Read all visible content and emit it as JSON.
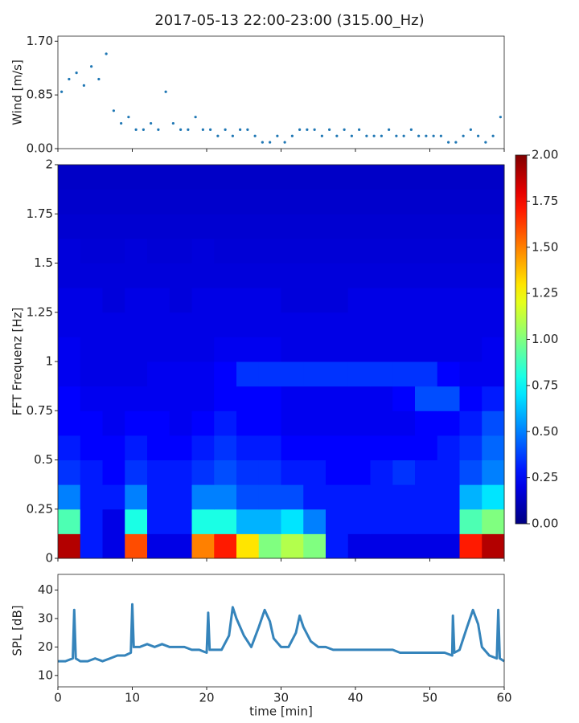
{
  "title": "2017-05-13 22:00-23:00 (315.00_Hz)",
  "chart_data": [
    {
      "type": "scatter",
      "y_label": "Wind [m/s]",
      "color": "#1f77b4",
      "x": [
        0.5,
        1.5,
        2.5,
        3.5,
        4.5,
        5.5,
        6.5,
        7.5,
        8.5,
        9.5,
        10.5,
        11.5,
        12.5,
        13.5,
        14.5,
        15.5,
        16.5,
        17.5,
        18.5,
        19.5,
        20.5,
        21.5,
        22.5,
        23.5,
        24.5,
        25.5,
        26.5,
        27.5,
        28.5,
        29.5,
        30.5,
        31.5,
        32.5,
        33.5,
        34.5,
        35.5,
        36.5,
        37.5,
        38.5,
        39.5,
        40.5,
        41.5,
        42.5,
        43.5,
        44.5,
        45.5,
        46.5,
        47.5,
        48.5,
        49.5,
        50.5,
        51.5,
        52.5,
        53.5,
        54.5,
        55.5,
        56.5,
        57.5,
        58.5,
        59.5
      ],
      "values": [
        0.9,
        1.1,
        1.2,
        1.0,
        1.3,
        1.1,
        1.5,
        0.6,
        0.4,
        0.5,
        0.3,
        0.3,
        0.4,
        0.3,
        0.9,
        0.4,
        0.3,
        0.3,
        0.5,
        0.3,
        0.3,
        0.2,
        0.3,
        0.2,
        0.3,
        0.3,
        0.2,
        0.1,
        0.1,
        0.2,
        0.1,
        0.2,
        0.3,
        0.3,
        0.3,
        0.2,
        0.3,
        0.2,
        0.3,
        0.2,
        0.3,
        0.2,
        0.2,
        0.2,
        0.3,
        0.2,
        0.2,
        0.3,
        0.2,
        0.2,
        0.2,
        0.2,
        0.1,
        0.1,
        0.2,
        0.3,
        0.2,
        0.1,
        0.2,
        0.5
      ],
      "xlim": [
        0,
        60
      ],
      "xticks": [
        0,
        10,
        20,
        30,
        40,
        50,
        60
      ],
      "ylim": [
        0,
        1.78
      ],
      "yticks": [
        {
          "value": 0,
          "label": "0.00"
        },
        {
          "value": 0.85,
          "label": "0.85"
        },
        {
          "value": 1.7,
          "label": "1.70"
        }
      ]
    },
    {
      "type": "heatmap",
      "y_label": "FFT Frequenz [Hz]",
      "colormap": "jet",
      "x_edges": [
        0,
        3,
        6,
        9,
        12,
        15,
        18,
        21,
        24,
        27,
        30,
        33,
        36,
        39,
        42,
        45,
        48,
        51,
        54,
        57,
        60
      ],
      "y_edges": [
        0,
        0.125,
        0.25,
        0.375,
        0.5,
        0.625,
        0.75,
        0.875,
        1,
        1.125,
        1.25,
        1.375,
        1.5,
        1.625,
        1.75,
        1.875,
        2
      ],
      "values": [
        [
          1.9,
          0.3,
          0.2,
          1.6,
          0.2,
          0.2,
          1.5,
          1.7,
          1.3,
          1.0,
          1.1,
          1.0,
          0.3,
          0.2,
          0.2,
          0.2,
          0.2,
          0.2,
          1.7,
          1.9
        ],
        [
          0.9,
          0.3,
          0.2,
          0.8,
          0.3,
          0.3,
          0.8,
          0.8,
          0.6,
          0.6,
          0.7,
          0.5,
          0.3,
          0.3,
          0.3,
          0.3,
          0.3,
          0.3,
          0.9,
          1.0
        ],
        [
          0.5,
          0.3,
          0.3,
          0.5,
          0.3,
          0.3,
          0.5,
          0.5,
          0.4,
          0.4,
          0.4,
          0.3,
          0.3,
          0.3,
          0.3,
          0.3,
          0.3,
          0.3,
          0.6,
          0.7
        ],
        [
          0.35,
          0.3,
          0.25,
          0.35,
          0.3,
          0.3,
          0.35,
          0.4,
          0.35,
          0.35,
          0.3,
          0.3,
          0.25,
          0.25,
          0.3,
          0.35,
          0.3,
          0.3,
          0.4,
          0.5
        ],
        [
          0.3,
          0.25,
          0.25,
          0.3,
          0.25,
          0.25,
          0.3,
          0.35,
          0.3,
          0.3,
          0.25,
          0.25,
          0.25,
          0.25,
          0.25,
          0.25,
          0.25,
          0.3,
          0.35,
          0.45
        ],
        [
          0.25,
          0.25,
          0.22,
          0.25,
          0.25,
          0.22,
          0.25,
          0.3,
          0.25,
          0.25,
          0.22,
          0.22,
          0.22,
          0.22,
          0.22,
          0.22,
          0.25,
          0.25,
          0.3,
          0.4
        ],
        [
          0.25,
          0.22,
          0.22,
          0.22,
          0.22,
          0.22,
          0.22,
          0.25,
          0.25,
          0.25,
          0.22,
          0.22,
          0.22,
          0.22,
          0.22,
          0.25,
          0.4,
          0.4,
          0.25,
          0.3
        ],
        [
          0.22,
          0.2,
          0.2,
          0.2,
          0.22,
          0.22,
          0.22,
          0.25,
          0.35,
          0.35,
          0.35,
          0.35,
          0.35,
          0.35,
          0.35,
          0.35,
          0.35,
          0.25,
          0.22,
          0.22
        ],
        [
          0.22,
          0.2,
          0.2,
          0.2,
          0.2,
          0.2,
          0.2,
          0.22,
          0.22,
          0.22,
          0.2,
          0.2,
          0.2,
          0.2,
          0.2,
          0.2,
          0.2,
          0.2,
          0.2,
          0.22
        ],
        [
          0.2,
          0.2,
          0.2,
          0.2,
          0.2,
          0.2,
          0.2,
          0.2,
          0.2,
          0.2,
          0.2,
          0.2,
          0.2,
          0.2,
          0.2,
          0.2,
          0.2,
          0.2,
          0.2,
          0.2
        ],
        [
          0.2,
          0.2,
          0.18,
          0.2,
          0.2,
          0.18,
          0.2,
          0.2,
          0.2,
          0.2,
          0.18,
          0.18,
          0.18,
          0.2,
          0.2,
          0.2,
          0.2,
          0.2,
          0.2,
          0.2
        ],
        [
          0.18,
          0.18,
          0.18,
          0.18,
          0.18,
          0.18,
          0.18,
          0.18,
          0.18,
          0.18,
          0.18,
          0.18,
          0.18,
          0.18,
          0.18,
          0.18,
          0.18,
          0.18,
          0.18,
          0.18
        ],
        [
          0.18,
          0.17,
          0.17,
          0.18,
          0.17,
          0.17,
          0.18,
          0.17,
          0.17,
          0.17,
          0.17,
          0.17,
          0.17,
          0.17,
          0.17,
          0.17,
          0.17,
          0.17,
          0.17,
          0.17
        ],
        [
          0.16,
          0.16,
          0.16,
          0.16,
          0.16,
          0.16,
          0.16,
          0.16,
          0.16,
          0.16,
          0.16,
          0.16,
          0.16,
          0.16,
          0.16,
          0.16,
          0.16,
          0.16,
          0.16,
          0.16
        ],
        [
          0.15,
          0.15,
          0.15,
          0.15,
          0.15,
          0.15,
          0.15,
          0.15,
          0.15,
          0.15,
          0.15,
          0.15,
          0.15,
          0.15,
          0.15,
          0.15,
          0.15,
          0.15,
          0.15,
          0.15
        ],
        [
          0.14,
          0.14,
          0.14,
          0.14,
          0.14,
          0.14,
          0.14,
          0.14,
          0.14,
          0.14,
          0.14,
          0.14,
          0.14,
          0.14,
          0.14,
          0.14,
          0.14,
          0.14,
          0.14,
          0.14
        ]
      ],
      "xlim": [
        0,
        60
      ],
      "xticks": [
        0,
        10,
        20,
        30,
        40,
        50,
        60
      ],
      "ylim": [
        0,
        2
      ],
      "yticks": [
        0,
        0.25,
        0.5,
        0.75,
        1,
        1.25,
        1.5,
        1.75,
        2
      ],
      "colorbar": {
        "lim": [
          0,
          2
        ],
        "ticks": [
          {
            "value": 0,
            "label": "0.00"
          },
          {
            "value": 0.25,
            "label": "0.25"
          },
          {
            "value": 0.5,
            "label": "0.50"
          },
          {
            "value": 0.75,
            "label": "0.75"
          },
          {
            "value": 1,
            "label": "1.00"
          },
          {
            "value": 1.25,
            "label": "1.25"
          },
          {
            "value": 1.5,
            "label": "1.50"
          },
          {
            "value": 1.75,
            "label": "1.75"
          },
          {
            "value": 2,
            "label": "2.00"
          }
        ]
      }
    },
    {
      "type": "line",
      "y_label": "SPL [dB]",
      "x_label": "time [min]",
      "color": "#1f77b4",
      "x": [
        0,
        1,
        2,
        2.2,
        2.4,
        3,
        4,
        5,
        6,
        7,
        8,
        9,
        9.8,
        10,
        10.2,
        11,
        12,
        13,
        14,
        15,
        16,
        17,
        18,
        19,
        20,
        20.2,
        20.4,
        21,
        22,
        23,
        23.5,
        24,
        25,
        26,
        27,
        27.8,
        28.5,
        29,
        30,
        31,
        32,
        32.5,
        33,
        34,
        35,
        36,
        37,
        38,
        39,
        40,
        41,
        42,
        43,
        44,
        45,
        46,
        47,
        48,
        49,
        50,
        51,
        52,
        53,
        53.1,
        53.3,
        54,
        55,
        55.8,
        56.5,
        57,
        58,
        59,
        59.2,
        59.4,
        60
      ],
      "values": [
        15,
        15,
        16,
        33,
        16,
        15,
        15,
        16,
        15,
        16,
        17,
        17,
        18,
        35,
        20,
        20,
        21,
        20,
        21,
        20,
        20,
        20,
        19,
        19,
        18,
        32,
        19,
        19,
        19,
        24,
        34,
        30,
        24,
        20,
        27,
        33,
        29,
        23,
        20,
        20,
        25,
        31,
        27,
        22,
        20,
        20,
        19,
        19,
        19,
        19,
        19,
        19,
        19,
        19,
        19,
        18,
        18,
        18,
        18,
        18,
        18,
        18,
        17,
        31,
        18,
        19,
        27,
        33,
        28,
        20,
        17,
        16,
        33,
        16,
        15
      ],
      "xlim": [
        0,
        60
      ],
      "xticks": [
        0,
        10,
        20,
        30,
        40,
        50,
        60
      ],
      "ylim": [
        6,
        45.5
      ],
      "yticks": [
        10,
        20,
        30,
        40
      ]
    }
  ]
}
